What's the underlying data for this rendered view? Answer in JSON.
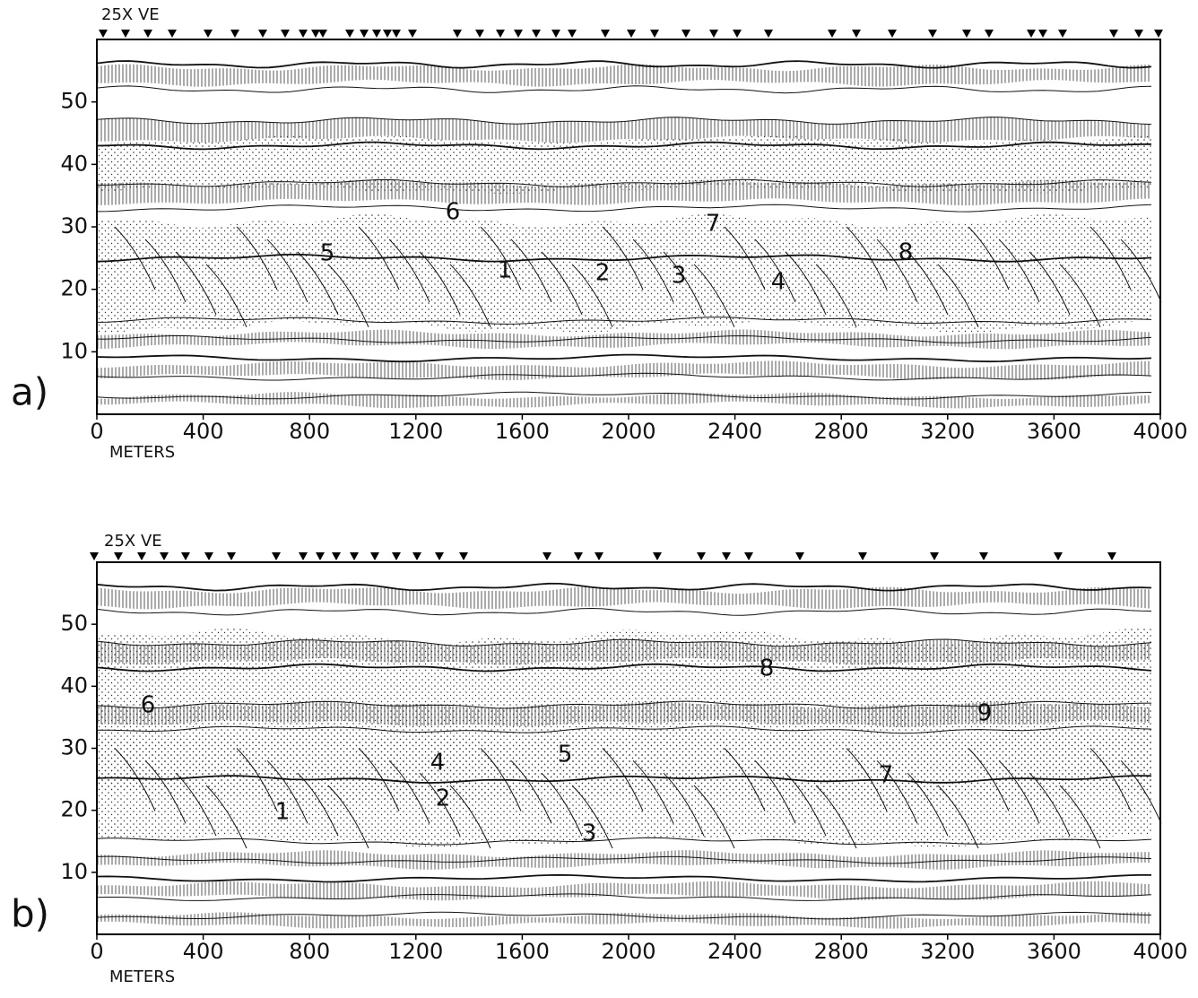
{
  "panels": [
    {
      "label": "a)",
      "exaggeration": "25X  VE",
      "x_axis_label": "METERS",
      "xlim": [
        0,
        4000
      ],
      "ylim": [
        0,
        60
      ],
      "xticks": [
        0,
        400,
        800,
        1200,
        1600,
        2000,
        2400,
        2800,
        3200,
        3600,
        4000
      ],
      "yticks": [
        10,
        20,
        30,
        40,
        50
      ],
      "annotations": [
        "6",
        "7",
        "5",
        "8",
        "1",
        "2",
        "3",
        "4"
      ]
    },
    {
      "label": "b)",
      "exaggeration": "25X  VE",
      "x_axis_label": "METERS",
      "xlim": [
        0,
        4000
      ],
      "ylim": [
        0,
        60
      ],
      "xticks": [
        0,
        400,
        800,
        1200,
        1600,
        2000,
        2400,
        2800,
        3200,
        3600,
        4000
      ],
      "yticks": [
        10,
        20,
        30,
        40,
        50
      ],
      "annotations": [
        "6",
        "8",
        "9",
        "4",
        "5",
        "7",
        "1",
        "2",
        "3"
      ]
    }
  ]
}
